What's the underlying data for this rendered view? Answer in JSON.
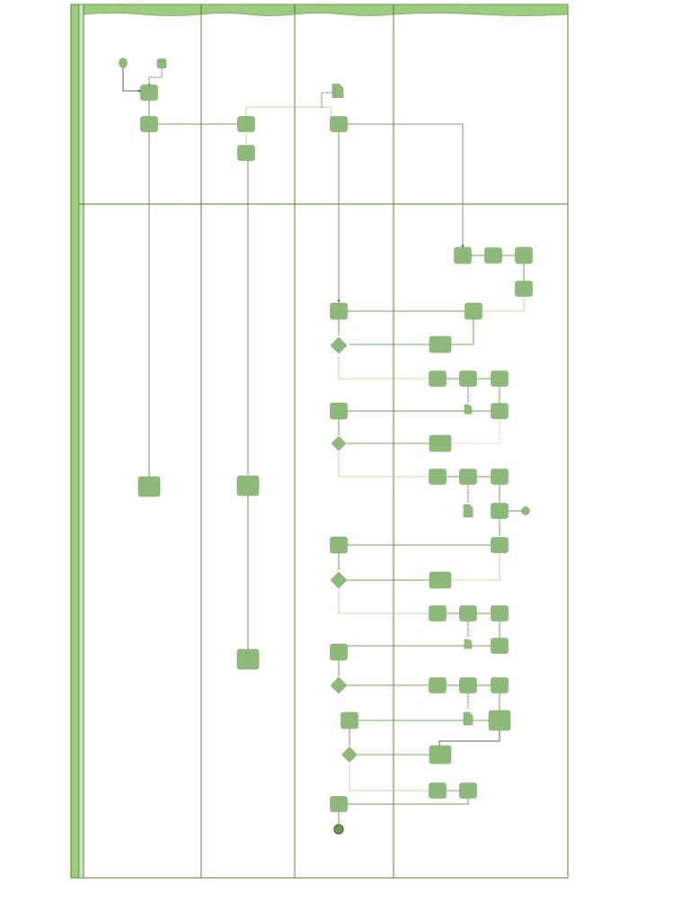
{
  "pool": {
    "label": "",
    "phase_labels": [
      "",
      ""
    ]
  },
  "lanes": [
    {
      "title": ""
    },
    {
      "title": ""
    },
    {
      "title": ""
    },
    {
      "title": ""
    }
  ],
  "colors": {
    "node_fill": "#8fb97a",
    "node_stroke": "#6f9a58",
    "header_fill": "#9ccc7e",
    "border": "#4f7a2f",
    "edge": "#4a7f2a",
    "edge_light": "#a9cf8f",
    "edge_gray": "#6b6b6b"
  },
  "nodes": {
    "labels": {}
  }
}
